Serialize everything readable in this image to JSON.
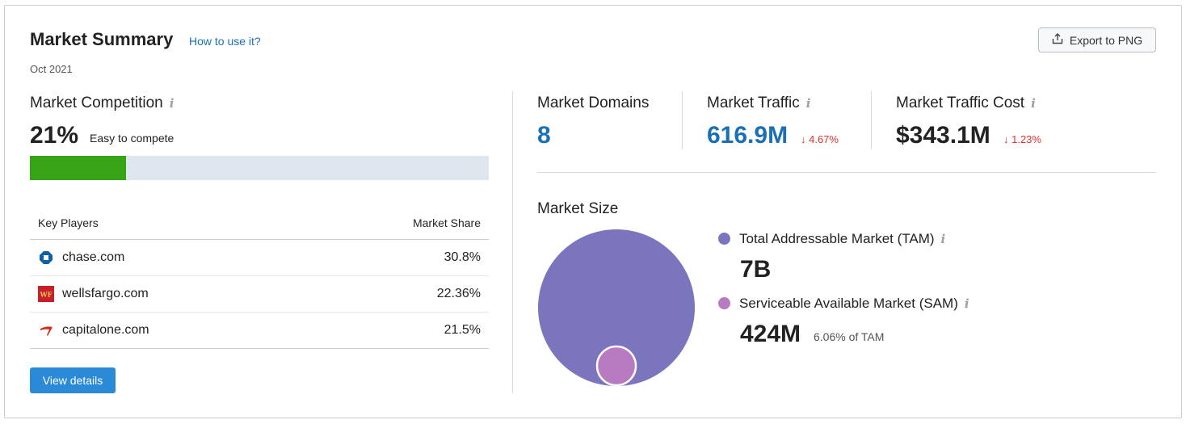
{
  "header": {
    "title": "Market Summary",
    "how_to": "How to use it?",
    "date": "Oct 2021",
    "export_label": "Export to PNG"
  },
  "competition": {
    "label": "Market Competition",
    "value": "21%",
    "description": "Easy to compete",
    "progress": 0.21,
    "bar_color": "#36a414",
    "track_color": "#e0e6ee"
  },
  "key_players": {
    "col_player": "Key Players",
    "col_share": "Market Share",
    "rows": [
      {
        "domain": "chase.com",
        "share": "30.8%",
        "icon": "chase-logo-icon"
      },
      {
        "domain": "wellsfargo.com",
        "share": "22.36%",
        "icon": "wellsfargo-logo-icon"
      },
      {
        "domain": "capitalone.com",
        "share": "21.5%",
        "icon": "capitalone-logo-icon"
      }
    ],
    "view_details": "View details"
  },
  "metrics": {
    "domains": {
      "label": "Market Domains",
      "value": "8"
    },
    "traffic": {
      "label": "Market Traffic",
      "value": "616.9M",
      "change": "↓ 4.67%"
    },
    "traffic_cost": {
      "label": "Market Traffic Cost",
      "value": "$343.1M",
      "change": "↓ 1.23%"
    }
  },
  "market_size": {
    "label": "Market Size",
    "tam": {
      "label": "Total Addressable Market (TAM)",
      "value": "7B",
      "color": "#7b75bd"
    },
    "sam": {
      "label": "Serviceable Available Market (SAM)",
      "value": "424M",
      "note": "6.06% of TAM",
      "color": "#b87ac0"
    }
  },
  "colors": {
    "link": "#1a6fb5",
    "primary_button": "#2b8ad8",
    "negative": "#e03030"
  }
}
